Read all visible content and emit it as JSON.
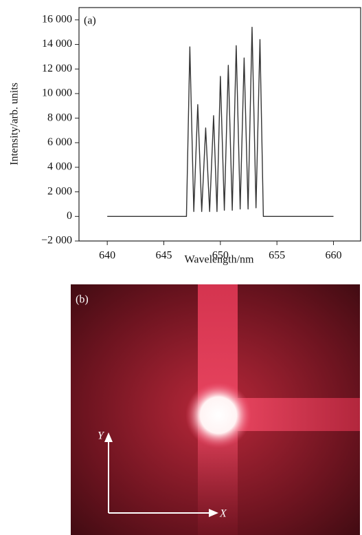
{
  "chart_data": {
    "type": "line",
    "annotation": "(a)",
    "x_label": "Wavelength/nm",
    "y_label": "Intensity/arb. units",
    "x": [
      640,
      647.0,
      647.3,
      647.65,
      648.0,
      648.35,
      648.7,
      649.05,
      649.4,
      649.7,
      650.0,
      650.35,
      650.7,
      651.05,
      651.4,
      651.75,
      652.1,
      652.45,
      652.8,
      653.15,
      653.5,
      653.8,
      660
    ],
    "values": [
      0,
      0,
      13800,
      400,
      9100,
      400,
      7200,
      400,
      8200,
      400,
      11400,
      500,
      12300,
      500,
      13900,
      600,
      12900,
      600,
      15400,
      700,
      14400,
      0,
      0
    ],
    "color": "#333333",
    "xlim": [
      637.5,
      662.4
    ],
    "xticks": [
      640,
      645,
      650,
      655,
      660
    ],
    "ylim": [
      -2000,
      17000
    ],
    "yticks": [
      {
        "value": -2000,
        "label": "−2 000"
      },
      0,
      {
        "value": 2000,
        "label": "2 000"
      },
      {
        "value": 4000,
        "label": "4 000"
      },
      {
        "value": 6000,
        "label": "6 000"
      },
      {
        "value": 8000,
        "label": "8 000"
      },
      {
        "value": 10000,
        "label": "10 000"
      },
      {
        "value": 12000,
        "label": "12 000"
      },
      {
        "value": 14000,
        "label": "14 000"
      },
      {
        "value": 16000,
        "label": "16 000"
      }
    ],
    "grid": false
  },
  "photo": {
    "label": "(b)",
    "axis_y": "Y",
    "axis_x": "X"
  }
}
